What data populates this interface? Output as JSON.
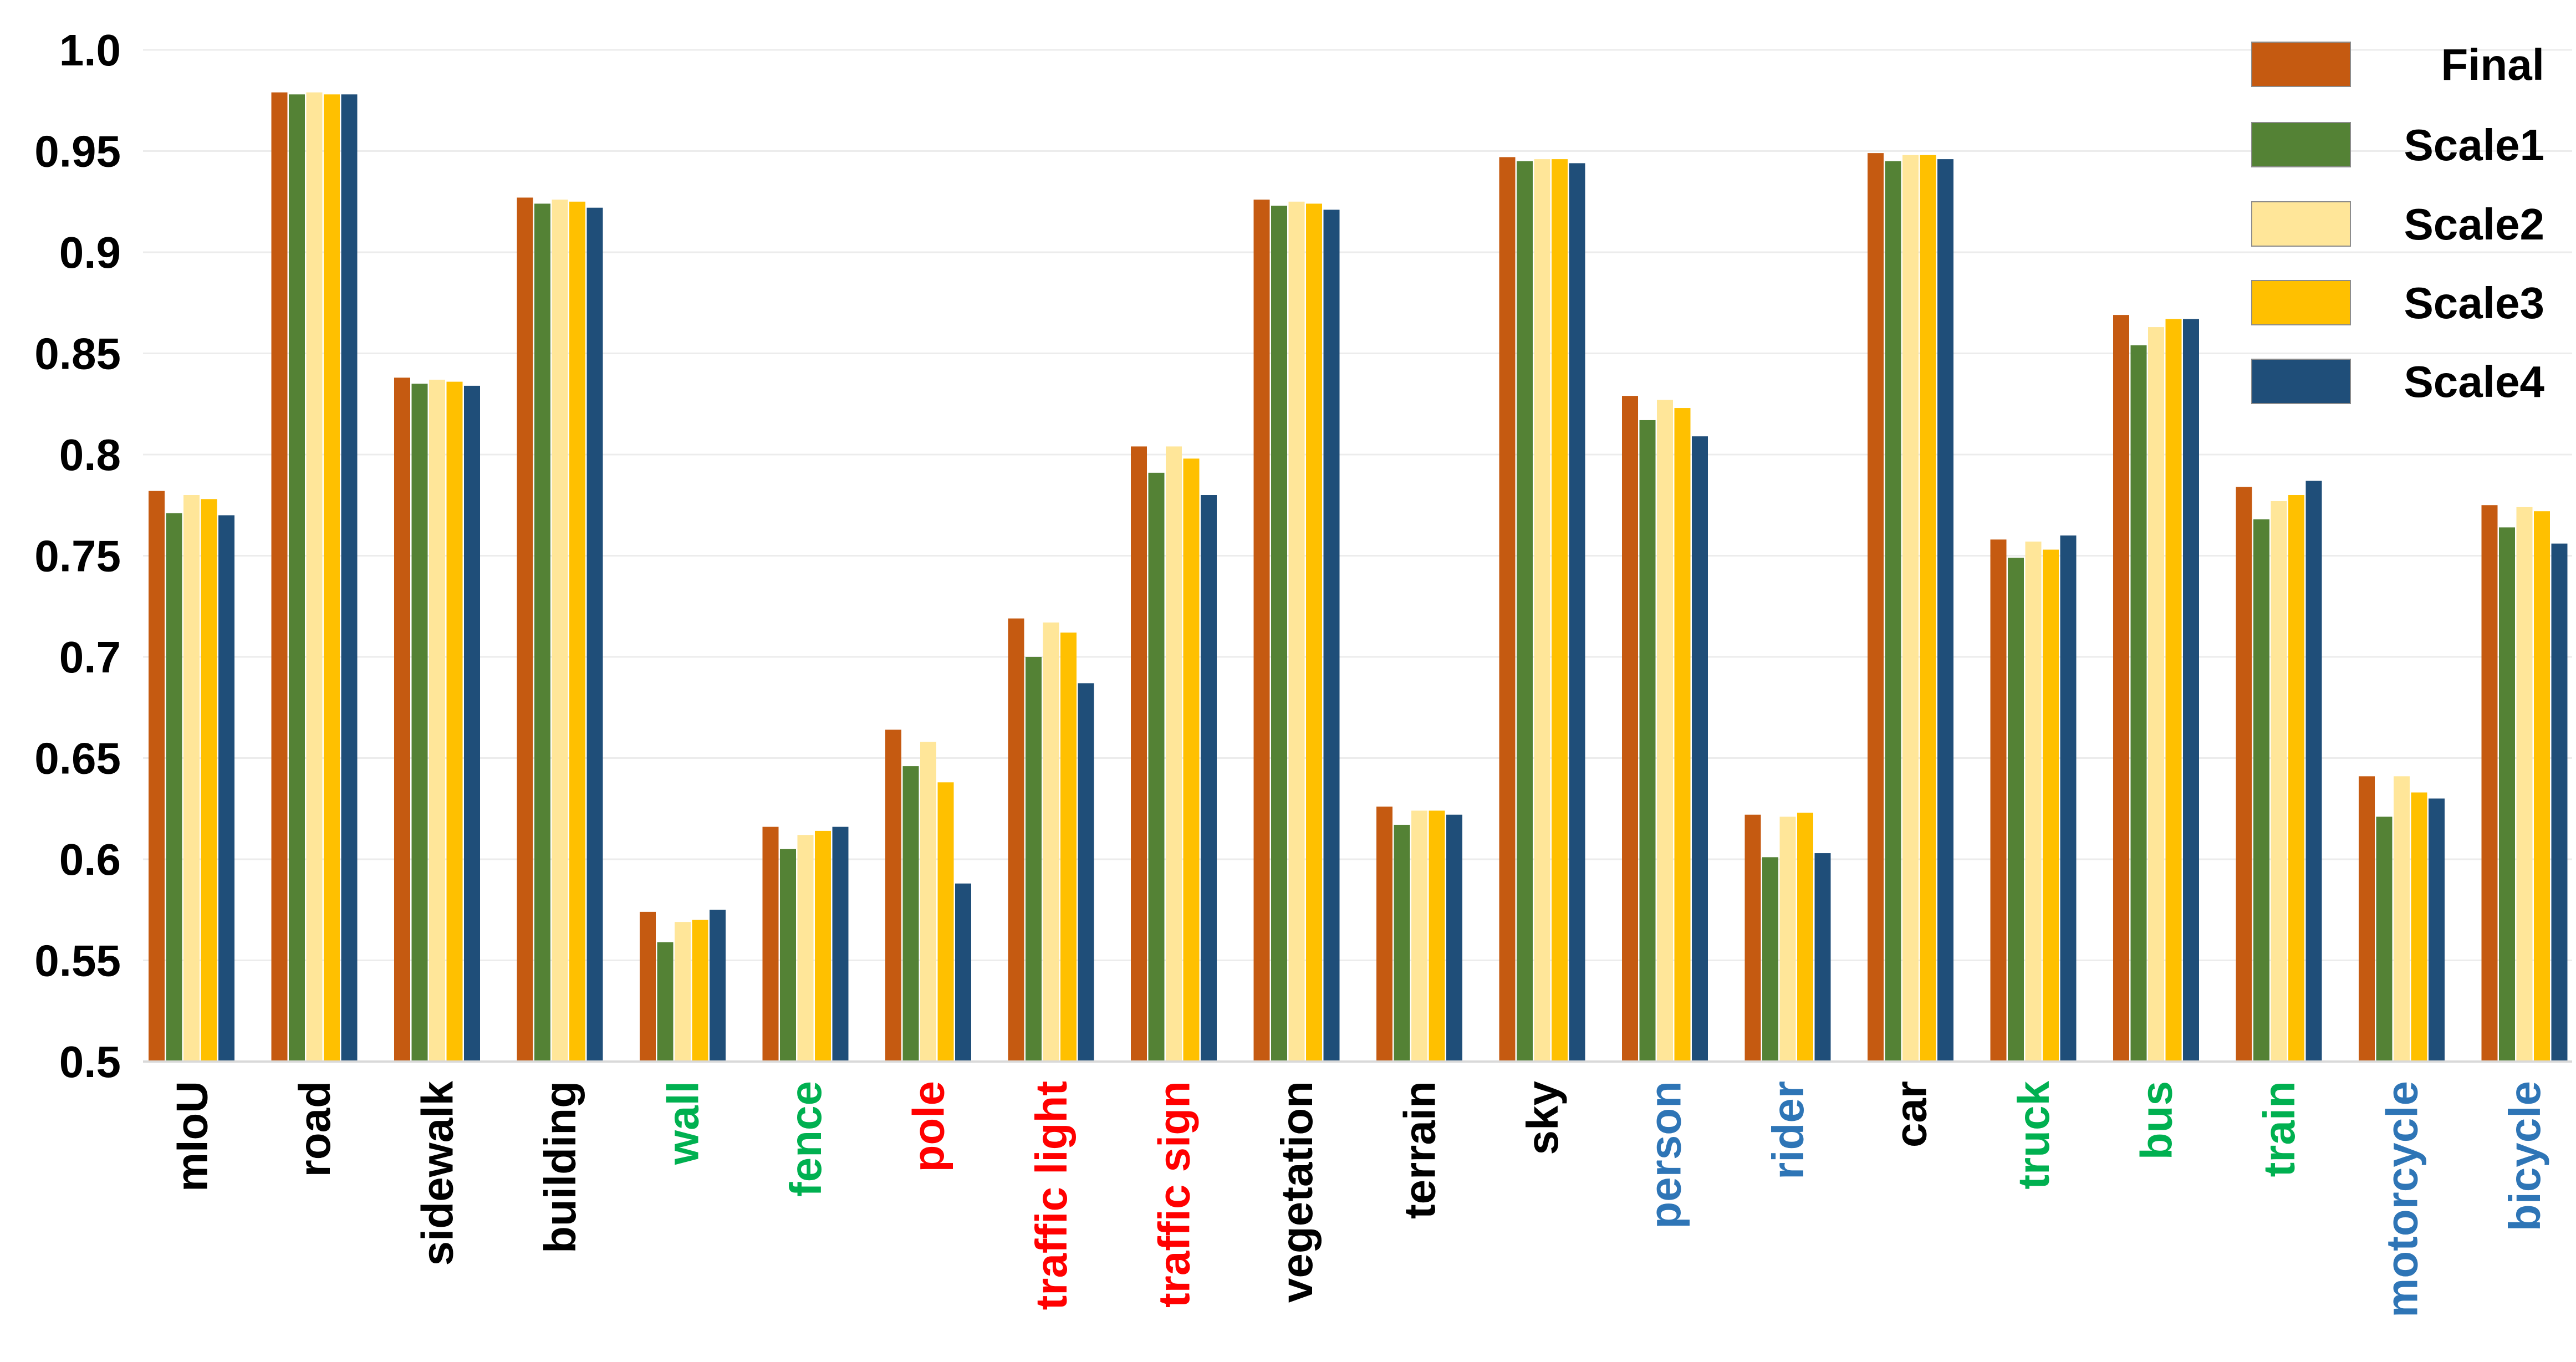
{
  "chart_data": {
    "type": "bar",
    "title": "",
    "xlabel": "",
    "ylabel": "",
    "ylim": [
      0.5,
      1.0
    ],
    "yticks": [
      "0.5",
      "0.55",
      "0.6",
      "0.65",
      "0.7",
      "0.75",
      "0.8",
      "0.85",
      "0.9",
      "0.95",
      "1.0"
    ],
    "grid": "horizontal",
    "legend_position": "top-right",
    "categories": [
      "mIoU",
      "road",
      "sidewalk",
      "building",
      "wall",
      "fence",
      "pole",
      "traffic light",
      "traffic sign",
      "vegetation",
      "terrain",
      "sky",
      "person",
      "rider",
      "car",
      "truck",
      "bus",
      "train",
      "motorcycle",
      "bicycle"
    ],
    "category_colors": [
      "#000000",
      "#000000",
      "#000000",
      "#000000",
      "#00B050",
      "#00B050",
      "#FF0000",
      "#FF0000",
      "#FF0000",
      "#000000",
      "#000000",
      "#000000",
      "#2E75B6",
      "#2E75B6",
      "#000000",
      "#00B050",
      "#00B050",
      "#00B050",
      "#2E75B6",
      "#2E75B6"
    ],
    "series": [
      {
        "name": "Final",
        "color": "#C55A11",
        "values": [
          0.782,
          0.979,
          0.838,
          0.927,
          0.574,
          0.616,
          0.664,
          0.719,
          0.804,
          0.926,
          0.626,
          0.947,
          0.829,
          0.622,
          0.949,
          0.758,
          0.869,
          0.784,
          0.641,
          0.775
        ]
      },
      {
        "name": "Scale1",
        "color": "#548235",
        "values": [
          0.771,
          0.978,
          0.835,
          0.924,
          0.559,
          0.605,
          0.646,
          0.7,
          0.791,
          0.923,
          0.617,
          0.945,
          0.817,
          0.601,
          0.945,
          0.749,
          0.854,
          0.768,
          0.621,
          0.764
        ]
      },
      {
        "name": "Scale2",
        "color": "#FFE699",
        "values": [
          0.78,
          0.979,
          0.837,
          0.926,
          0.569,
          0.612,
          0.658,
          0.717,
          0.804,
          0.925,
          0.624,
          0.946,
          0.827,
          0.621,
          0.948,
          0.757,
          0.863,
          0.777,
          0.641,
          0.774
        ]
      },
      {
        "name": "Scale3",
        "color": "#FFC000",
        "values": [
          0.778,
          0.978,
          0.836,
          0.925,
          0.57,
          0.614,
          0.638,
          0.712,
          0.798,
          0.924,
          0.624,
          0.946,
          0.823,
          0.623,
          0.948,
          0.753,
          0.867,
          0.78,
          0.633,
          0.772
        ]
      },
      {
        "name": "Scale4",
        "color": "#1F4E79",
        "values": [
          0.77,
          0.978,
          0.834,
          0.922,
          0.575,
          0.616,
          0.588,
          0.687,
          0.78,
          0.921,
          0.622,
          0.944,
          0.809,
          0.603,
          0.946,
          0.76,
          0.867,
          0.787,
          0.63,
          0.756
        ]
      }
    ]
  }
}
